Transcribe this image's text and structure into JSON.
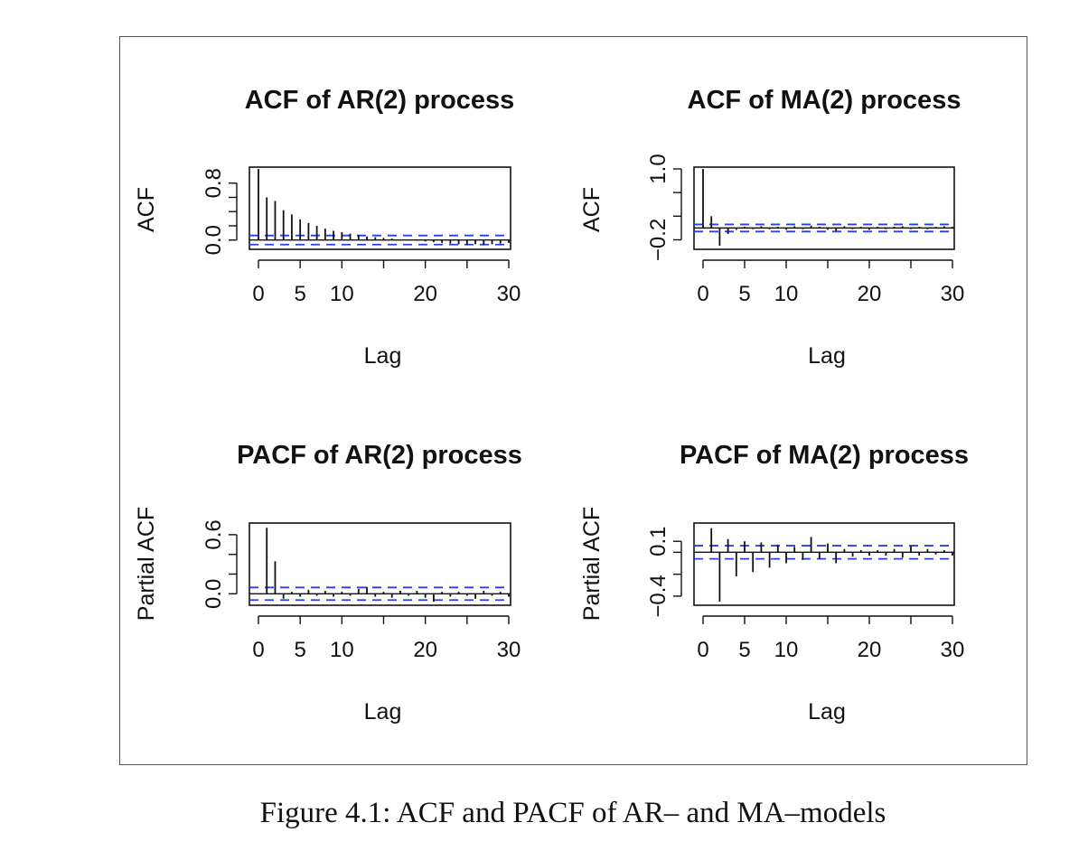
{
  "caption": "Figure 4.1: ACF and PACF of AR– and MA–models",
  "colors": {
    "bars": "#111111",
    "ci": "#2e3de8",
    "frame": "#111111"
  },
  "chart_data": [
    {
      "type": "bar",
      "title": "ACF of AR(2) process",
      "xlabel": "Lag",
      "ylabel": "ACF",
      "x_ticks": [
        0,
        5,
        10,
        20,
        30
      ],
      "x_tick_labels": [
        "0",
        "5",
        "10",
        "20",
        "30"
      ],
      "y_ticks": [
        0.0,
        0.2,
        0.4,
        0.6,
        0.8
      ],
      "y_tick_labels": [
        "0.0",
        "0.8"
      ],
      "xlim": [
        0,
        30
      ],
      "ylim": [
        -0.08,
        1.0
      ],
      "confidence_band": [
        -0.064,
        0.064
      ],
      "lags": [
        0,
        1,
        2,
        3,
        4,
        5,
        6,
        7,
        8,
        9,
        10,
        11,
        12,
        13,
        14,
        15,
        16,
        17,
        18,
        19,
        20,
        21,
        22,
        23,
        24,
        25,
        26,
        27,
        28,
        29,
        30
      ],
      "values": [
        1.0,
        0.6,
        0.55,
        0.42,
        0.36,
        0.29,
        0.24,
        0.2,
        0.16,
        0.13,
        0.11,
        0.09,
        0.07,
        0.05,
        0.04,
        0.03,
        0.02,
        0.01,
        0.0,
        -0.01,
        -0.02,
        -0.03,
        -0.04,
        -0.05,
        -0.06,
        -0.07,
        -0.06,
        -0.07,
        -0.06,
        -0.05,
        -0.04
      ]
    },
    {
      "type": "bar",
      "title": "ACF of MA(2) process",
      "xlabel": "Lag",
      "ylabel": "ACF",
      "x_ticks": [
        0,
        5,
        10,
        20,
        30
      ],
      "x_tick_labels": [
        "0",
        "5",
        "10",
        "20",
        "30"
      ],
      "y_ticks": [
        -0.2,
        0.2,
        0.6,
        1.0
      ],
      "y_tick_labels": [
        "−0.2",
        "1.0"
      ],
      "xlim": [
        0,
        30
      ],
      "ylim": [
        -0.3,
        1.0
      ],
      "confidence_band": [
        -0.06,
        0.06
      ],
      "lags": [
        0,
        1,
        2,
        3,
        4,
        5,
        6,
        7,
        8,
        9,
        10,
        11,
        12,
        13,
        14,
        15,
        16,
        17,
        18,
        19,
        20,
        21,
        22,
        23,
        24,
        25,
        26,
        27,
        28,
        29,
        30
      ],
      "values": [
        1.0,
        0.2,
        -0.3,
        -0.1,
        -0.03,
        0.02,
        -0.02,
        0.03,
        -0.02,
        0.02,
        -0.03,
        0.03,
        -0.02,
        0.04,
        0.02,
        -0.03,
        -0.05,
        0.03,
        -0.02,
        0.02,
        -0.03,
        0.02,
        -0.02,
        0.02,
        0.03,
        -0.02,
        0.02,
        -0.02,
        0.02,
        0.03,
        0.02
      ]
    },
    {
      "type": "bar",
      "title": "PACF of AR(2) process",
      "xlabel": "Lag",
      "ylabel": "Partial ACF",
      "x_ticks": [
        0,
        5,
        10,
        20,
        30
      ],
      "x_tick_labels": [
        "0",
        "5",
        "10",
        "20",
        "30"
      ],
      "y_ticks": [
        0.0,
        0.2,
        0.4,
        0.6
      ],
      "y_tick_labels": [
        "0.0",
        "0.6"
      ],
      "xlim": [
        0,
        30
      ],
      "ylim": [
        -0.08,
        0.7
      ],
      "confidence_band": [
        -0.064,
        0.064
      ],
      "lags": [
        1,
        2,
        3,
        4,
        5,
        6,
        7,
        8,
        9,
        10,
        11,
        12,
        13,
        14,
        15,
        16,
        17,
        18,
        19,
        20,
        21,
        22,
        23,
        24,
        25,
        26,
        27,
        28,
        29,
        30
      ],
      "values": [
        0.67,
        0.33,
        -0.05,
        0.02,
        -0.03,
        0.04,
        -0.02,
        0.03,
        -0.03,
        0.02,
        -0.02,
        0.05,
        0.07,
        -0.03,
        0.02,
        -0.04,
        0.03,
        -0.02,
        0.03,
        -0.04,
        -0.08,
        0.02,
        -0.03,
        0.02,
        -0.02,
        -0.05,
        0.03,
        -0.02,
        0.02,
        -0.03
      ]
    },
    {
      "type": "bar",
      "title": "PACF of MA(2) process",
      "xlabel": "Lag",
      "ylabel": "Partial ACF",
      "x_ticks": [
        0,
        5,
        10,
        20,
        30
      ],
      "x_tick_labels": [
        "0",
        "5",
        "10",
        "20",
        "30"
      ],
      "y_ticks": [
        -0.4,
        -0.2,
        0.0,
        0.1
      ],
      "y_tick_labels": [
        "−0.4",
        "0.1"
      ],
      "xlim": [
        0,
        30
      ],
      "ylim": [
        -0.45,
        0.25
      ],
      "confidence_band": [
        -0.06,
        0.06
      ],
      "lags": [
        1,
        2,
        3,
        4,
        5,
        6,
        7,
        8,
        9,
        10,
        11,
        12,
        13,
        14,
        15,
        16,
        17,
        18,
        19,
        20,
        21,
        22,
        23,
        24,
        25,
        26,
        27,
        28,
        29,
        30
      ],
      "values": [
        0.22,
        -0.45,
        0.12,
        -0.22,
        0.1,
        -0.18,
        0.09,
        -0.14,
        0.07,
        -0.1,
        0.05,
        -0.07,
        0.14,
        -0.06,
        0.08,
        -0.1,
        0.03,
        -0.04,
        0.02,
        -0.03,
        0.02,
        -0.03,
        0.03,
        -0.05,
        0.06,
        -0.03,
        0.03,
        -0.02,
        0.02,
        -0.03
      ]
    }
  ]
}
